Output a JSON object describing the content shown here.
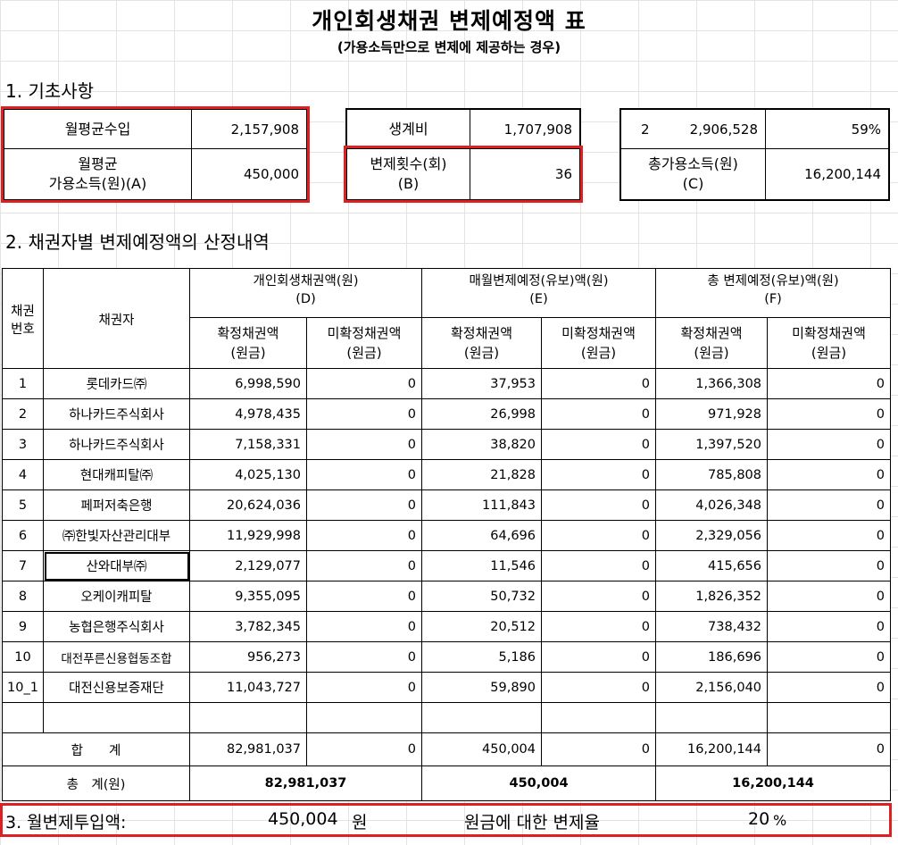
{
  "header": {
    "title": "개인회생채권 변제예정액 표",
    "subtitle": "(가용소득만으로 변제에 제공하는 경우)"
  },
  "section1": {
    "title": "1. 기초사항"
  },
  "basic": {
    "monthly_income_label": "월평균수입",
    "monthly_income_value": "2,157,908",
    "available_income_label_1": "월평균",
    "available_income_label_2": "가용소득(원)(A)",
    "available_income_value": "450,000",
    "living_cost_label": "생계비",
    "living_cost_value": "1,707,908",
    "repay_count_label_1": "변제횟수(회)",
    "repay_count_label_2": "(B)",
    "repay_count_value": "36",
    "extra_a": "2",
    "extra_b": "2,906,528",
    "extra_c": "59%",
    "total_available_label_1": "총가용소득(원)",
    "total_available_label_2": "(C)",
    "total_available_value": "16,200,144"
  },
  "section2": {
    "title": "2. 채권자별 변제예정액의 산정내역"
  },
  "table": {
    "col_no_1": "채권",
    "col_no_2": "번호",
    "col_creditor": "채권자",
    "group_d_1": "개인회생채권액(원)",
    "group_d_2": "(D)",
    "group_e_1": "매월변제예정(유보)액(원)",
    "group_e_2": "(E)",
    "group_f_1": "총 변제예정(유보)액(원)",
    "group_f_2": "(F)",
    "confirmed_1": "확정채권액",
    "confirmed_2": "(원금)",
    "unconfirmed_1": "미확정채권액",
    "unconfirmed_2": "(원금)",
    "rows": [
      {
        "no": "1",
        "name": "롯데카드㈜",
        "d1": "6,998,590",
        "d2": "0",
        "e1": "37,953",
        "e2": "0",
        "f1": "1,366,308",
        "f2": "0"
      },
      {
        "no": "2",
        "name": "하나카드주식회사",
        "d1": "4,978,435",
        "d2": "0",
        "e1": "26,998",
        "e2": "0",
        "f1": "971,928",
        "f2": "0"
      },
      {
        "no": "3",
        "name": "하나카드주식회사",
        "d1": "7,158,331",
        "d2": "0",
        "e1": "38,820",
        "e2": "0",
        "f1": "1,397,520",
        "f2": "0"
      },
      {
        "no": "4",
        "name": "현대캐피탈㈜",
        "d1": "4,025,130",
        "d2": "0",
        "e1": "21,828",
        "e2": "0",
        "f1": "785,808",
        "f2": "0"
      },
      {
        "no": "5",
        "name": "페퍼저축은행",
        "d1": "20,624,036",
        "d2": "0",
        "e1": "111,843",
        "e2": "0",
        "f1": "4,026,348",
        "f2": "0"
      },
      {
        "no": "6",
        "name": "㈜한빛자산관리대부",
        "d1": "11,929,998",
        "d2": "0",
        "e1": "64,696",
        "e2": "0",
        "f1": "2,329,056",
        "f2": "0"
      },
      {
        "no": "7",
        "name": "산와대부㈜",
        "d1": "2,129,077",
        "d2": "0",
        "e1": "11,546",
        "e2": "0",
        "f1": "415,656",
        "f2": "0"
      },
      {
        "no": "8",
        "name": "오케이캐피탈",
        "d1": "9,355,095",
        "d2": "0",
        "e1": "50,732",
        "e2": "0",
        "f1": "1,826,352",
        "f2": "0"
      },
      {
        "no": "9",
        "name": "농협은행주식회사",
        "d1": "3,782,345",
        "d2": "0",
        "e1": "20,512",
        "e2": "0",
        "f1": "738,432",
        "f2": "0"
      },
      {
        "no": "10",
        "name": "대전푸른신용협동조합",
        "d1": "956,273",
        "d2": "0",
        "e1": "5,186",
        "e2": "0",
        "f1": "186,696",
        "f2": "0"
      },
      {
        "no": "10_1",
        "name": "대전신용보증재단",
        "d1": "11,043,727",
        "d2": "0",
        "e1": "59,890",
        "e2": "0",
        "f1": "2,156,040",
        "f2": "0"
      }
    ],
    "sum_label": "합　　계",
    "sum": {
      "d1": "82,981,037",
      "d2": "0",
      "e1": "450,004",
      "e2": "0",
      "f1": "16,200,144",
      "f2": "0"
    },
    "total_label": "총　계(원)",
    "total": {
      "d": "82,981,037",
      "e": "450,004",
      "f": "16,200,144"
    }
  },
  "footer": {
    "label": "3. 월변제투입액:",
    "amount": "450,004",
    "unit": "원",
    "rate_label": "원금에 대한 변제율",
    "rate_value": "20",
    "percent": "%"
  }
}
